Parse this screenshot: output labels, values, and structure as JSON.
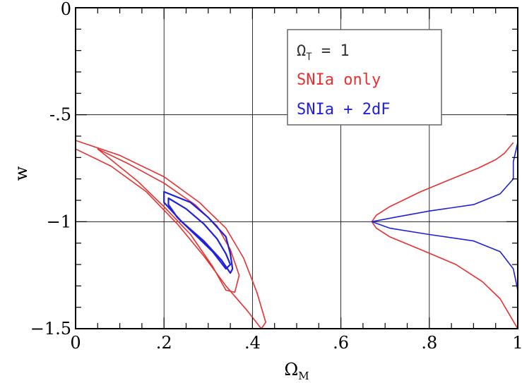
{
  "chart_data": {
    "type": "line",
    "title": "",
    "xlabel": "Ω",
    "xlabel_sub": "M",
    "ylabel": "w",
    "xlim": [
      0,
      1
    ],
    "ylim": [
      -1.5,
      0
    ],
    "grid": true,
    "x_ticks": [
      {
        "value": 0,
        "label": "0"
      },
      {
        "value": 0.2,
        "label": ".2"
      },
      {
        "value": 0.4,
        "label": ".4"
      },
      {
        "value": 0.6,
        "label": ".6"
      },
      {
        "value": 0.8,
        "label": ".8"
      },
      {
        "value": 1,
        "label": "1"
      }
    ],
    "y_ticks": [
      {
        "value": 0,
        "label": "0"
      },
      {
        "value": -0.5,
        "label": "-.5"
      },
      {
        "value": -1,
        "label": "−1"
      },
      {
        "value": -1.5,
        "label": "−1.5"
      }
    ],
    "legend": {
      "position": "top-right",
      "entries": [
        {
          "main": "Ω",
          "sub": "T",
          "rest": " = 1",
          "color": "#333333"
        },
        {
          "main": "SNIa only",
          "sub": "",
          "rest": "",
          "color": "#e83030"
        },
        {
          "main": "SNIa + 2dF",
          "sub": "",
          "rest": "",
          "color": "#2020dd"
        }
      ]
    },
    "series": [
      {
        "name": "SNIa only",
        "color": "#e83030",
        "contours": [
          [
            [
              0.05,
              -0.66
            ],
            [
              0.12,
              -0.73
            ],
            [
              0.2,
              -0.82
            ],
            [
              0.27,
              -0.92
            ],
            [
              0.32,
              -1.02
            ],
            [
              0.35,
              -1.13
            ],
            [
              0.37,
              -1.25
            ],
            [
              0.36,
              -1.33
            ],
            [
              0.34,
              -1.32
            ],
            [
              0.31,
              -1.21
            ],
            [
              0.26,
              -1.06
            ],
            [
              0.2,
              -0.93
            ],
            [
              0.14,
              -0.81
            ],
            [
              0.08,
              -0.71
            ],
            [
              0.05,
              -0.66
            ]
          ],
          [
            [
              0,
              -0.62
            ],
            [
              0.1,
              -0.69
            ],
            [
              0.2,
              -0.79
            ],
            [
              0.28,
              -0.91
            ],
            [
              0.34,
              -1.03
            ],
            [
              0.38,
              -1.17
            ],
            [
              0.41,
              -1.33
            ],
            [
              0.43,
              -1.47
            ],
            [
              0.42,
              -1.5
            ],
            [
              0.39,
              -1.42
            ],
            [
              0.34,
              -1.3
            ],
            [
              0.29,
              -1.16
            ],
            [
              0.23,
              -1.01
            ],
            [
              0.16,
              -0.86
            ],
            [
              0.08,
              -0.74
            ],
            [
              0,
              -0.66
            ]
          ]
        ],
        "marginal": [
          [
            0.99,
            -0.63
          ],
          [
            0.97,
            -0.68
          ],
          [
            0.95,
            -0.71
          ],
          [
            0.91,
            -0.75
          ],
          [
            0.85,
            -0.8
          ],
          [
            0.78,
            -0.86
          ],
          [
            0.71,
            -0.93
          ],
          [
            0.68,
            -0.97
          ],
          [
            0.67,
            -1.0
          ],
          [
            0.68,
            -1.03
          ],
          [
            0.71,
            -1.07
          ],
          [
            0.78,
            -1.13
          ],
          [
            0.86,
            -1.2
          ],
          [
            0.92,
            -1.28
          ],
          [
            0.96,
            -1.36
          ],
          [
            0.98,
            -1.43
          ],
          [
            1.0,
            -1.5
          ]
        ]
      },
      {
        "name": "SNIa + 2dF",
        "color": "#2020dd",
        "contours": [
          [
            [
              0.21,
              -0.89
            ],
            [
              0.25,
              -0.94
            ],
            [
              0.29,
              -1.01
            ],
            [
              0.32,
              -1.08
            ],
            [
              0.34,
              -1.15
            ],
            [
              0.35,
              -1.2
            ],
            [
              0.34,
              -1.22
            ],
            [
              0.31,
              -1.14
            ],
            [
              0.27,
              -1.06
            ],
            [
              0.23,
              -0.98
            ],
            [
              0.21,
              -0.92
            ],
            [
              0.21,
              -0.89
            ]
          ],
          [
            [
              0.2,
              -0.86
            ],
            [
              0.26,
              -0.91
            ],
            [
              0.3,
              -0.98
            ],
            [
              0.34,
              -1.07
            ],
            [
              0.35,
              -1.15
            ],
            [
              0.355,
              -1.22
            ],
            [
              0.35,
              -1.24
            ],
            [
              0.33,
              -1.18
            ],
            [
              0.29,
              -1.09
            ],
            [
              0.24,
              -1.0
            ],
            [
              0.2,
              -0.91
            ],
            [
              0.2,
              -0.86
            ]
          ]
        ],
        "marginal": [
          [
            1.0,
            -0.63
          ],
          [
            0.99,
            -0.72
          ],
          [
            0.99,
            -0.8
          ],
          [
            0.96,
            -0.87
          ],
          [
            0.9,
            -0.92
          ],
          [
            0.8,
            -0.95
          ],
          [
            0.72,
            -0.98
          ],
          [
            0.67,
            -1.0
          ],
          [
            0.71,
            -1.03
          ],
          [
            0.8,
            -1.06
          ],
          [
            0.9,
            -1.09
          ],
          [
            0.96,
            -1.14
          ],
          [
            0.99,
            -1.22
          ],
          [
            1.0,
            -1.32
          ],
          [
            1.0,
            -1.5
          ]
        ]
      }
    ]
  }
}
